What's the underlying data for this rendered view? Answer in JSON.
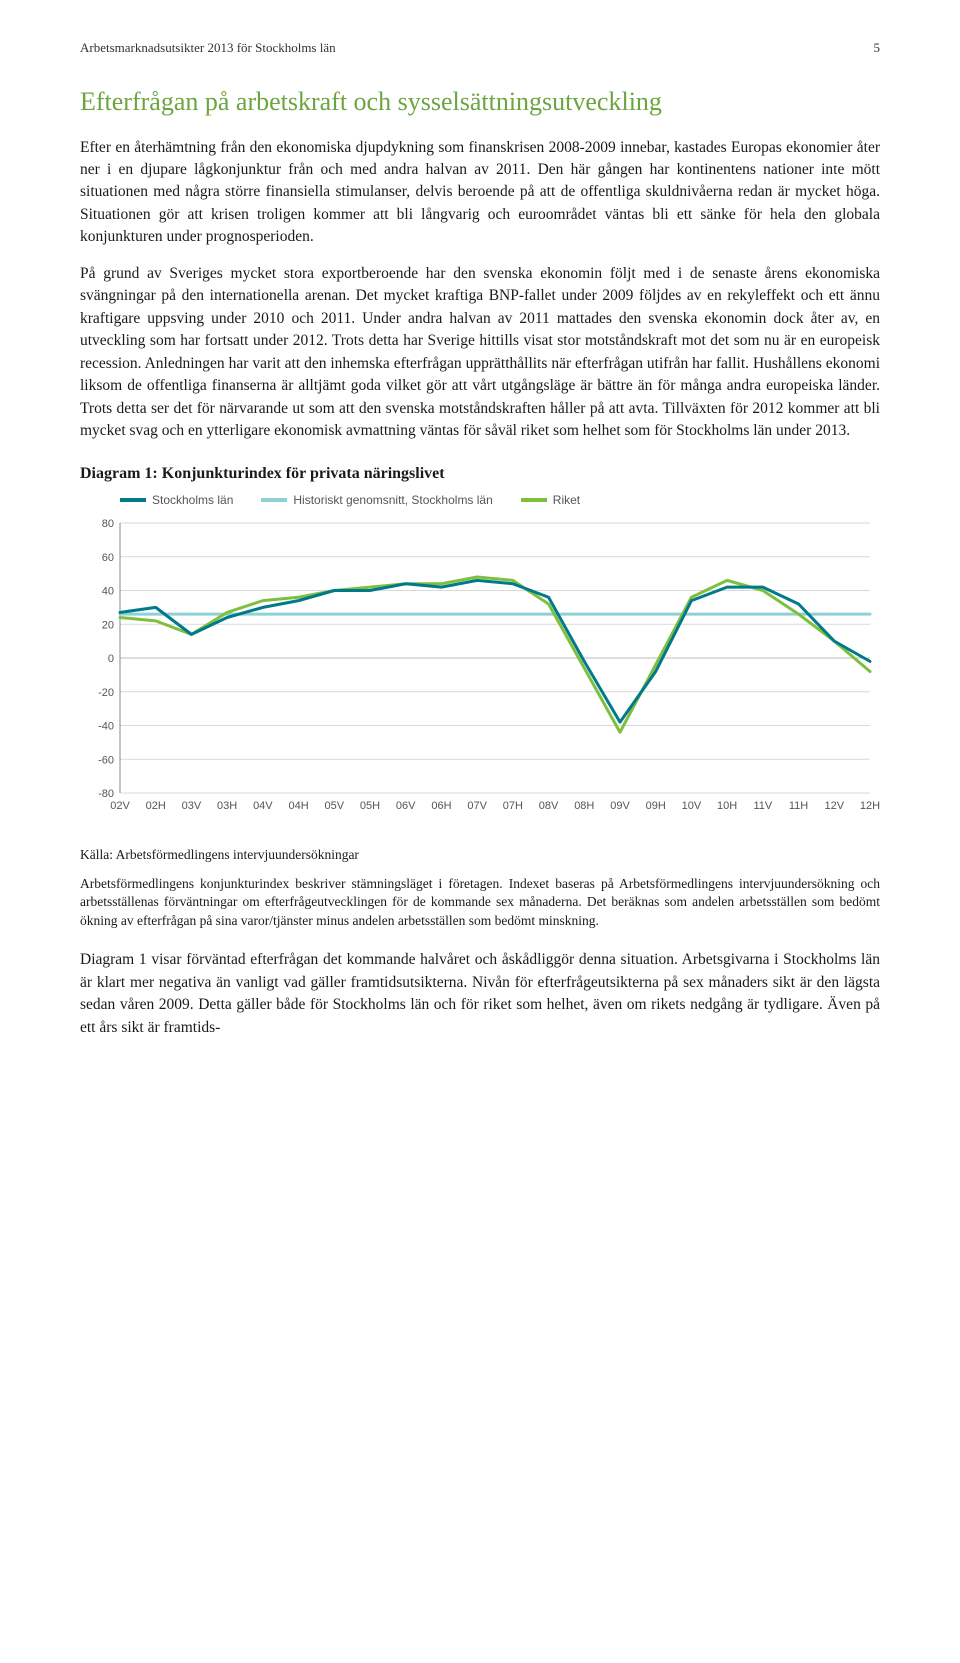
{
  "header": {
    "running": "Arbetsmarknadsutsikter 2013 för Stockholms län",
    "pagenum": "5"
  },
  "section_title": "Efterfrågan på arbetskraft och sysselsättningsutveckling",
  "paragraphs": {
    "p1": "Efter en återhämtning från den ekonomiska djupdykning som finanskrisen 2008-2009 innebar, kastades Europas ekonomier åter ner i en djupare lågkonjunktur från och med andra halvan av 2011. Den här gången har kontinentens nationer inte mött situationen med några större finansiella stimulanser, delvis beroende på att de offentliga skuldnivåerna redan är mycket höga. Situationen gör att krisen troligen kommer att bli långvarig och euroområdet väntas bli ett sänke för hela den globala konjunkturen under prognosperioden.",
    "p2": "På grund av Sveriges mycket stora exportberoende har den svenska ekonomin följt med i de senaste årens ekonomiska svängningar på den internationella arenan. Det mycket kraftiga BNP-fallet under 2009 följdes av en rekyleffekt och ett ännu kraftigare uppsving under 2010 och 2011. Under andra halvan av 2011 mattades den svenska ekonomin dock åter av, en utveckling som har fortsatt under 2012. Trots detta har Sverige hittills visat stor motståndskraft mot det som nu är en europeisk recession. Anledningen har varit att den inhemska efterfrågan upprätthållits när efterfrågan utifrån har fallit. Hushållens ekonomi liksom de offentliga finanserna är alltjämt goda vilket gör att vårt utgångsläge är bättre än för många andra europeiska länder. Trots detta ser det för närvarande ut som att den svenska motståndskraften håller på att avta. Tillväxten för 2012 kommer att bli mycket svag och en ytterligare ekonomisk avmattning väntas för såväl riket som helhet som för Stockholms län under 2013."
  },
  "chart": {
    "title": "Diagram 1: Konjunkturindex för privata näringslivet",
    "type": "line",
    "legend": [
      {
        "label": "Stockholms län",
        "color": "#007a8a"
      },
      {
        "label": "Historiskt genomsnitt, Stockholms län",
        "color": "#8fd0d6"
      },
      {
        "label": "Riket",
        "color": "#7fbf3f"
      }
    ],
    "x_labels": [
      "02V",
      "02H",
      "03V",
      "03H",
      "04V",
      "04H",
      "05V",
      "05H",
      "06V",
      "06H",
      "07V",
      "07H",
      "08V",
      "08H",
      "09V",
      "09H",
      "10V",
      "10H",
      "11V",
      "11H",
      "12V",
      "12H"
    ],
    "ylim": [
      -80,
      80
    ],
    "yticks": [
      -80,
      -60,
      -40,
      -20,
      0,
      20,
      40,
      60,
      80
    ],
    "grid_color": "#d9d9d9",
    "axis_color": "#888",
    "background": "#ffffff",
    "axis_font_size": 11,
    "line_width": 3,
    "series": {
      "stockholm": {
        "color": "#007a8a",
        "values": [
          27,
          30,
          14,
          24,
          30,
          34,
          40,
          40,
          44,
          42,
          46,
          44,
          36,
          -2,
          -38,
          -8,
          34,
          42,
          42,
          32,
          10,
          -2
        ]
      },
      "hist_avg": {
        "color": "#8fd0d6",
        "values": [
          26,
          26,
          26,
          26,
          26,
          26,
          26,
          26,
          26,
          26,
          26,
          26,
          26,
          26,
          26,
          26,
          26,
          26,
          26,
          26,
          26,
          26
        ]
      },
      "riket": {
        "color": "#7fbf3f",
        "values": [
          24,
          22,
          14,
          27,
          34,
          36,
          40,
          42,
          44,
          44,
          48,
          46,
          32,
          -6,
          -44,
          -4,
          36,
          46,
          40,
          26,
          10,
          -8
        ]
      }
    }
  },
  "source": "Källa: Arbetsförmedlingens intervjuundersökningar",
  "footnote": "Arbetsförmedlingens konjunkturindex beskriver stämningsläget i företagen. Indexet baseras på Arbetsförmedlingens intervjuundersökning och arbetsställenas förväntningar om efterfrågeutvecklingen för de kommande sex månaderna. Det beräknas som andelen arbetsställen som bedömt ökning av efterfrågan på sina varor/tjänster minus andelen arbetsställen som bedömt minskning.",
  "closing": "Diagram 1 visar förväntad efterfrågan det kommande halvåret och åskådliggör denna situation. Arbetsgivarna i Stockholms län är klart mer negativa än vanligt vad gäller framtidsutsikterna. Nivån för efterfrågeutsikterna på sex månaders sikt är den lägsta sedan våren 2009. Detta gäller både för Stockholms län och för riket som helhet, även om rikets nedgång är tydligare. Även på ett års sikt är framtids-"
}
